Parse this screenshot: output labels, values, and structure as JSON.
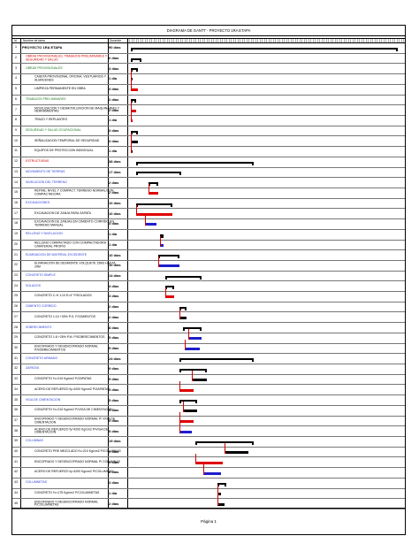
{
  "title": "DIAGRAMA DE GANTT - PROYECTO 1RA ETAPA",
  "columns": {
    "id": "Id",
    "name": "Nombre de tarea",
    "duration": "Duración"
  },
  "footer": "Página 1",
  "tasks": [
    {
      "id": "1",
      "name": "PROYECTO 1RA ETAPA",
      "dur": "90 días",
      "lvl": 0,
      "bar": {
        "type": "summary",
        "s": 4,
        "e": 300
      }
    },
    {
      "id": "2",
      "name": "OBRAS PROVISIONALES, TRABAJOS PRELIMINARES Y SEGURIDAD Y SALUD",
      "dur": "6 días",
      "lvl": "red",
      "bar": {
        "type": "summary",
        "s": 4,
        "e": 16
      }
    },
    {
      "id": "3",
      "name": "OBRAS PROVISIONALES",
      "dur": "3 días",
      "lvl": 1,
      "bar": {
        "type": "summary",
        "s": 4,
        "e": 12
      }
    },
    {
      "id": "4",
      "name": "CASETA PROVISIONAL OFICINA, VESTUARIOS Y ALMACENES",
      "dur": "1 día",
      "lvl": 3,
      "bar": {
        "type": "task",
        "s": 4,
        "e": 6
      }
    },
    {
      "id": "5",
      "name": "LIMPIEZA PERMANENTE EN OBRA",
      "dur": "3 días",
      "lvl": 3,
      "bar": {
        "type": "crit",
        "s": 4,
        "e": 12
      }
    },
    {
      "id": "6",
      "name": "TRABAJOS PRELIMINARES",
      "dur": "2 días",
      "lvl": 1,
      "bar": {
        "type": "summary",
        "s": 4,
        "e": 10
      }
    },
    {
      "id": "7",
      "name": "MOVILIZACION Y DESMOVILIZACION DE MAQUINARIAS Y HERRAMIENTAS",
      "dur": "2 días",
      "lvl": 3,
      "bar": {
        "type": "crit",
        "s": 4,
        "e": 10
      }
    },
    {
      "id": "8",
      "name": "TRAZO Y REPLANTEO",
      "dur": "1 día",
      "lvl": 3,
      "bar": {
        "type": "crit",
        "s": 4,
        "e": 6
      }
    },
    {
      "id": "9",
      "name": "SEGURIDAD Y SALUD OCUPACIONAL",
      "dur": "3 días",
      "lvl": 1,
      "bar": {
        "type": "summary",
        "s": 4,
        "e": 12
      }
    },
    {
      "id": "10",
      "name": "SEÑALIZACION TEMPORAL DE SEGURIDAD",
      "dur": "3 días",
      "lvl": 3,
      "bar": {
        "type": "task",
        "s": 4,
        "e": 12
      }
    },
    {
      "id": "11",
      "name": "EQUIPOS DE PROTECCION INDIVIDUAL",
      "dur": "1 día",
      "lvl": 3,
      "bar": {
        "type": "task",
        "s": 4,
        "e": 6
      }
    },
    {
      "id": "12",
      "name": "ESTRUCTURAS",
      "dur": "38 días",
      "lvl": "red",
      "bar": {
        "type": "summary",
        "s": 10,
        "e": 140
      }
    },
    {
      "id": "13",
      "name": "MOVIMIENTO DE TIERRAS",
      "dur": "17 días",
      "lvl": "blue",
      "bar": {
        "type": "summary",
        "s": 10,
        "e": 60
      }
    },
    {
      "id": "14",
      "name": "NIVELACION DEL TERRENO",
      "dur": "2 días",
      "lvl": "blue",
      "bar": {
        "type": "summary",
        "s": 24,
        "e": 34
      }
    },
    {
      "id": "15",
      "name": "REFINE, NIVEL Y COMPACT. TERRENO NORMAL/CON COMPACTADORA",
      "dur": "2 días",
      "lvl": 3,
      "bar": {
        "type": "crit",
        "s": 24,
        "e": 34
      }
    },
    {
      "id": "16",
      "name": "EXCAVACIONES",
      "dur": "10 días",
      "lvl": "blue",
      "bar": {
        "type": "summary",
        "s": 10,
        "e": 50
      }
    },
    {
      "id": "17",
      "name": "EXCAVACION DE ZANJA PARA ZAPATA",
      "dur": "10 días",
      "lvl": 3,
      "bar": {
        "type": "crit",
        "s": 10,
        "e": 50
      }
    },
    {
      "id": "18",
      "name": "EXCAVACION DE ZANJAS EN CIMIENTO CORRIDO EN TERRENO MANUAL",
      "dur": "3 días",
      "lvl": 3,
      "bar": {
        "type": "blue",
        "s": 20,
        "e": 32
      }
    },
    {
      "id": "19",
      "name": "RELLENO Y NIVELACION",
      "dur": "1 día",
      "lvl": "blue",
      "bar": {
        "type": "summary",
        "s": 36,
        "e": 40
      }
    },
    {
      "id": "20",
      "name": "RELLENO COMPACTADO CON COMPACTADORA C/MATERIAL PROPIO",
      "dur": "1 día",
      "lvl": 3,
      "bar": {
        "type": "blue",
        "s": 36,
        "e": 40
      }
    },
    {
      "id": "21",
      "name": "ELIMINACION DE MATERIAL EXCEDENTE",
      "dur": "10 días",
      "lvl": "blue",
      "bar": {
        "type": "summary",
        "s": 34,
        "e": 58
      }
    },
    {
      "id": "22",
      "name": "ELIMINACION DE DESMONTE VOLQUETE 15M3 HASTA 20M",
      "dur": "10 días",
      "lvl": 3,
      "bar": {
        "type": "blue",
        "s": 34,
        "e": 58
      }
    },
    {
      "id": "23",
      "name": "CONCRETO SIMPLE",
      "dur": "14 días",
      "lvl": "blue",
      "bar": {
        "type": "summary",
        "s": 42,
        "e": 82
      }
    },
    {
      "id": "24",
      "name": "SOLADOS",
      "dur": "3 días",
      "lvl": "blue",
      "bar": {
        "type": "summary",
        "s": 42,
        "e": 52
      }
    },
    {
      "id": "25",
      "name": "CONCRETO C-H 1:10 E=4\" P/SOLADOS",
      "dur": "3 días",
      "lvl": 3,
      "bar": {
        "type": "crit",
        "s": 42,
        "e": 52
      }
    },
    {
      "id": "26",
      "name": "CIMIENTO CORRIDO",
      "dur": "2 días",
      "lvl": "blue",
      "bar": {
        "type": "summary",
        "s": 58,
        "e": 66
      }
    },
    {
      "id": "27",
      "name": "CONCRETO 1:10 +30% P.G. P/CIMIENTOS",
      "dur": "2 días",
      "lvl": 3,
      "bar": {
        "type": "task",
        "s": 58,
        "e": 66
      }
    },
    {
      "id": "28",
      "name": "SOBRECIMIENTO",
      "dur": "8 días",
      "lvl": "blue",
      "bar": {
        "type": "summary",
        "s": 62,
        "e": 82
      }
    },
    {
      "id": "29",
      "name": "CONCRETO 1:8 +25% P.M. P/SOBRECIMIENTOS",
      "dur": "5 días",
      "lvl": 3,
      "bar": {
        "type": "blue",
        "s": 68,
        "e": 82
      }
    },
    {
      "id": "30",
      "name": "ENCOFRADO Y DESENCOFRADO NORMAL P/SOBRECIMIENTOS",
      "dur": "5 días",
      "lvl": 3,
      "bar": {
        "type": "blue",
        "s": 64,
        "e": 80
      }
    },
    {
      "id": "31",
      "name": "CONCRETO ARMADO",
      "dur": "24 días",
      "lvl": "blue",
      "bar": {
        "type": "summary",
        "s": 58,
        "e": 140
      }
    },
    {
      "id": "32",
      "name": "ZAPATAS",
      "dur": "9 días",
      "lvl": "blue",
      "bar": {
        "type": "summary",
        "s": 58,
        "e": 88
      }
    },
    {
      "id": "33",
      "name": "CONCRETO f'c=210 Kg/cm2 P/ZAPATAS",
      "dur": "5 días",
      "lvl": 3,
      "bar": {
        "type": "task",
        "s": 72,
        "e": 88
      }
    },
    {
      "id": "34",
      "name": "ACERO DE REFUERZO fy=4200 Kg/cm2 P/ZAPATAS",
      "dur": "5 días",
      "lvl": 3,
      "bar": {
        "type": "crit",
        "s": 58,
        "e": 74
      }
    },
    {
      "id": "35",
      "name": "VIGA DE CIMENTACION",
      "dur": "5 días",
      "lvl": "blue",
      "bar": {
        "type": "summary",
        "s": 58,
        "e": 78
      }
    },
    {
      "id": "36",
      "name": "CONCRETO f'c=210 Kg/cm2 P/VIGA DE CIMENTACION",
      "dur": "5 días",
      "lvl": 3,
      "bar": {
        "type": "task",
        "s": 62,
        "e": 78
      }
    },
    {
      "id": "37",
      "name": "ENCOFRADO Y DESENCOFRADO NORMAL P/ VIGA DE CIMENTACION",
      "dur": "5 días",
      "lvl": 3,
      "bar": {
        "type": "crit",
        "s": 58,
        "e": 74
      }
    },
    {
      "id": "38",
      "name": "ACERO DE REFUERZO fy=4200 Kg/cm2 P/VIGA DE CIMENTACION",
      "dur": "5 días",
      "lvl": 3,
      "bar": {
        "type": "blue",
        "s": 58,
        "e": 72
      }
    },
    {
      "id": "39",
      "name": "COLUMNAS",
      "dur": "19 días",
      "lvl": "blue",
      "bar": {
        "type": "summary",
        "s": 76,
        "e": 140
      }
    },
    {
      "id": "40",
      "name": "CONCRETO PRE MEZCLADO f'c=210 Kg/cm2 P/COLUMNAS",
      "dur": "9 días",
      "lvl": 3,
      "bar": {
        "type": "task",
        "s": 108,
        "e": 134
      }
    },
    {
      "id": "41",
      "name": "ENCOFRADO Y DESENCOFRADO NORMAL P/ COLUMNAS",
      "dur": "9 días",
      "lvl": 3,
      "bar": {
        "type": "crit",
        "s": 76,
        "e": 106
      }
    },
    {
      "id": "42",
      "name": "ACERO DE REFUERZO fy=4200 Kg/cm2 P/COLUMNAS",
      "dur": "6 días",
      "lvl": 3,
      "bar": {
        "type": "blue",
        "s": 84,
        "e": 104
      }
    },
    {
      "id": "43",
      "name": "COLUMNETAS",
      "dur": "3 días",
      "lvl": "blue",
      "bar": {
        "type": "summary",
        "s": 100,
        "e": 110
      }
    },
    {
      "id": "44",
      "name": "CONCRETO f'c=175 Kg/cm2 P/COLUMNETAS",
      "dur": "1 día",
      "lvl": 3,
      "bar": {
        "type": "task",
        "s": 100,
        "e": 104
      }
    },
    {
      "id": "45",
      "name": "ENCOFRADO Y DESENCOFRADO NORMAL P/COLUMNETAS",
      "dur": "2 días",
      "lvl": 3,
      "bar": {
        "type": "task",
        "s": 100,
        "e": 108
      }
    }
  ]
}
